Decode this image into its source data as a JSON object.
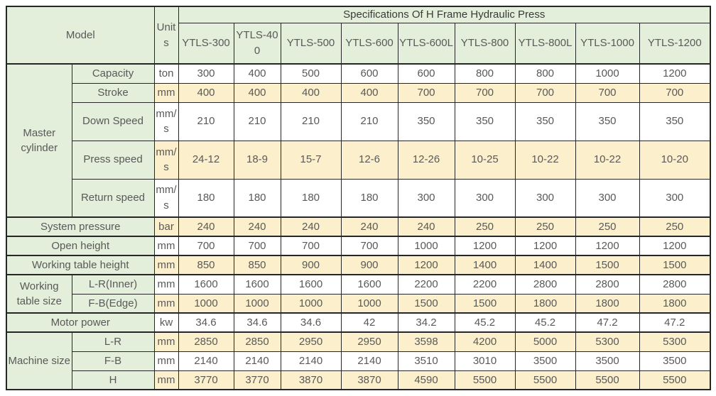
{
  "chart_data": {
    "type": "table",
    "title": "Specifications Of H Frame Hydraulic Press",
    "model_label": "Model",
    "units_label": "Units",
    "columns": [
      "YTLS-300",
      "YTLS-400",
      "YTLS-500",
      "YTLS-600",
      "YTLS-600L",
      "YTLS-800",
      "YTLS-800L",
      "YTLS-1000",
      "YTLS-1200"
    ],
    "rows": [
      {
        "group": "Master cylinder",
        "group_span": 5,
        "label": "Capacity",
        "unit": "ton",
        "values": [
          "300",
          "400",
          "500",
          "600",
          "600",
          "800",
          "800",
          "1000",
          "1200"
        ]
      },
      {
        "label": "Stroke",
        "unit": "mm",
        "values": [
          "400",
          "400",
          "400",
          "400",
          "700",
          "700",
          "700",
          "700",
          "700"
        ]
      },
      {
        "label": "Down Speed",
        "unit": "mm/s",
        "values": [
          "210",
          "210",
          "210",
          "210",
          "350",
          "350",
          "350",
          "350",
          "350"
        ]
      },
      {
        "label": "Press speed",
        "unit": "mm/s",
        "values": [
          "24-12",
          "18-9",
          "15-7",
          "12-6",
          "12-26",
          "10-25",
          "10-22",
          "10-22",
          "10-20"
        ]
      },
      {
        "label": "Return speed",
        "unit": "mm/s",
        "values": [
          "180",
          "180",
          "180",
          "180",
          "300",
          "300",
          "300",
          "300",
          "300"
        ]
      },
      {
        "label": "System pressure",
        "wide": true,
        "unit": "bar",
        "values": [
          "240",
          "240",
          "240",
          "240",
          "240",
          "250",
          "250",
          "250",
          "250"
        ]
      },
      {
        "label": "Open height",
        "wide": true,
        "unit": "mm",
        "values": [
          "700",
          "700",
          "700",
          "700",
          "1000",
          "1200",
          "1200",
          "1200",
          "1200"
        ]
      },
      {
        "label": "Working table height",
        "wide": true,
        "unit": "mm",
        "values": [
          "850",
          "850",
          "900",
          "900",
          "1200",
          "1400",
          "1400",
          "1500",
          "1500"
        ]
      },
      {
        "group": "Working table size",
        "group_span": 2,
        "label": "L-R(Inner)",
        "unit": "mm",
        "values": [
          "1600",
          "1600",
          "1600",
          "1600",
          "2200",
          "2200",
          "2800",
          "2800",
          "2800"
        ]
      },
      {
        "label": "F-B(Edge)",
        "unit": "mm",
        "values": [
          "1000",
          "1000",
          "1000",
          "1000",
          "1500",
          "1500",
          "1800",
          "1800",
          "1800"
        ]
      },
      {
        "label": "Motor power",
        "wide": true,
        "unit": "kw",
        "values": [
          "34.6",
          "34.6",
          "34.6",
          "42",
          "34.2",
          "45.2",
          "45.2",
          "47.2",
          "47.2"
        ]
      },
      {
        "group": "Machine size",
        "group_span": 3,
        "label": "L-R",
        "unit": "mm",
        "values": [
          "2850",
          "2850",
          "2950",
          "2950",
          "3598",
          "4200",
          "5000",
          "5300",
          "5300"
        ]
      },
      {
        "label": "F-B",
        "unit": "mm",
        "values": [
          "2140",
          "2140",
          "2140",
          "2140",
          "3510",
          "3010",
          "3500",
          "3500",
          "3500"
        ]
      },
      {
        "label": "H",
        "unit": "mm",
        "values": [
          "3770",
          "3770",
          "3870",
          "3870",
          "4590",
          "5500",
          "5500",
          "5500",
          "5500"
        ]
      }
    ]
  },
  "colors": {
    "header_green": "#e3efda",
    "row_yellow": "#fcf0cc",
    "border": "#262626",
    "text": "#595959",
    "title_text": "#3a3a3a"
  }
}
